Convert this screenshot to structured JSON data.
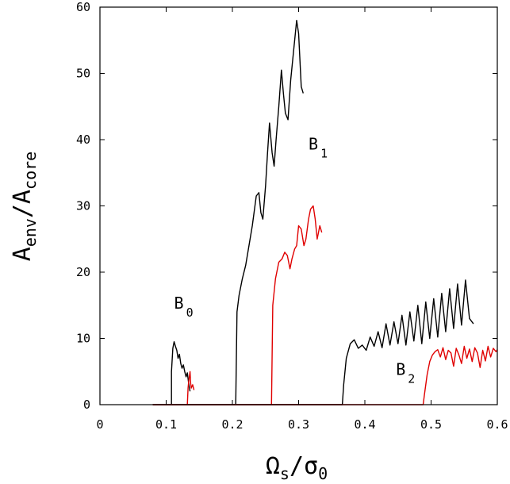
{
  "chart_data": {
    "type": "line",
    "title": "",
    "xlabel": {
      "main": "Ω",
      "sub": "s",
      "mid": "/σ",
      "sub2": "0"
    },
    "ylabel": {
      "main": "A",
      "sub": "env",
      "mid": "/A",
      "sub2": "core"
    },
    "xlim": [
      0,
      0.6
    ],
    "ylim": [
      0,
      60
    ],
    "xticks": [
      {
        "value": 0,
        "label": "0"
      },
      {
        "value": 0.1,
        "label": "0.1"
      },
      {
        "value": 0.2,
        "label": "0.2"
      },
      {
        "value": 0.3,
        "label": "0.3"
      },
      {
        "value": 0.4,
        "label": "0.4"
      },
      {
        "value": 0.5,
        "label": "0.5"
      },
      {
        "value": 0.6,
        "label": "0.6"
      }
    ],
    "yticks": [
      {
        "value": 0,
        "label": "0"
      },
      {
        "value": 10,
        "label": "10"
      },
      {
        "value": 20,
        "label": "20"
      },
      {
        "value": 30,
        "label": "30"
      },
      {
        "value": 40,
        "label": "40"
      },
      {
        "value": 50,
        "label": "50"
      },
      {
        "value": 60,
        "label": "60"
      }
    ],
    "colors": {
      "black": "#000000",
      "red": "#e00000"
    },
    "annotations": [
      {
        "id": "B0",
        "main": "B",
        "sub": "0",
        "x": 0.112,
        "y": 14.5
      },
      {
        "id": "B1",
        "main": "B",
        "sub": "1",
        "x": 0.315,
        "y": 38.5
      },
      {
        "id": "B2",
        "main": "B",
        "sub": "2",
        "x": 0.447,
        "y": 4.5
      }
    ],
    "series": [
      {
        "name": "black-branch-B0",
        "color": "#000000",
        "style": "solid",
        "x": [
          0.08,
          0.108,
          0.108,
          0.11,
          0.112,
          0.114,
          0.116,
          0.118,
          0.12,
          0.122,
          0.124,
          0.126,
          0.128,
          0.13,
          0.132,
          0.134,
          0.136
        ],
        "y": [
          0,
          0,
          5,
          8.5,
          9.5,
          8.8,
          8.2,
          7.0,
          7.6,
          6.2,
          5.5,
          6.0,
          5.0,
          4.2,
          4.8,
          3.2,
          2.0
        ]
      },
      {
        "name": "red-branch-B0",
        "color": "#e00000",
        "style": "solid",
        "x": [
          0.08,
          0.132,
          0.133,
          0.134,
          0.136,
          0.137,
          0.138,
          0.14,
          0.142
        ],
        "y": [
          0,
          0,
          2.5,
          3.5,
          5.0,
          3.2,
          2.5,
          3.0,
          2.2
        ]
      },
      {
        "name": "black-branch-B1",
        "color": "#000000",
        "style": "solid",
        "x": [
          0.08,
          0.205,
          0.207,
          0.21,
          0.215,
          0.22,
          0.225,
          0.23,
          0.236,
          0.24,
          0.243,
          0.246,
          0.25,
          0.253,
          0.256,
          0.26,
          0.263,
          0.266,
          0.27,
          0.274,
          0.277,
          0.28,
          0.284,
          0.288,
          0.291,
          0.294,
          0.297,
          0.3,
          0.304,
          0.307
        ],
        "y": [
          0,
          0,
          14,
          16.5,
          19,
          21,
          24,
          27,
          31.5,
          32,
          29,
          28,
          33,
          38,
          42.5,
          38,
          36,
          40,
          45,
          50.5,
          47,
          44,
          43,
          49,
          52,
          55,
          58,
          56,
          48,
          47
        ]
      },
      {
        "name": "red-branch-B1",
        "color": "#e00000",
        "style": "solid",
        "x": [
          0.08,
          0.259,
          0.261,
          0.265,
          0.27,
          0.275,
          0.279,
          0.283,
          0.287,
          0.29,
          0.294,
          0.297,
          0.3,
          0.304,
          0.308,
          0.311,
          0.315,
          0.318,
          0.322,
          0.325,
          0.328,
          0.332,
          0.335
        ],
        "y": [
          0,
          0,
          15,
          19,
          21.5,
          22,
          23,
          22.5,
          20.5,
          22,
          23.5,
          24,
          27,
          26.5,
          24,
          25,
          28,
          29.5,
          30,
          28,
          25,
          27,
          26
        ]
      },
      {
        "name": "black-branch-B2",
        "color": "#000000",
        "style": "solid",
        "x": [
          0.08,
          0.366,
          0.368,
          0.372,
          0.378,
          0.384,
          0.39,
          0.396,
          0.402,
          0.408,
          0.414,
          0.42,
          0.426,
          0.432,
          0.438,
          0.444,
          0.45,
          0.456,
          0.462,
          0.468,
          0.474,
          0.48,
          0.486,
          0.492,
          0.498,
          0.504,
          0.51,
          0.516,
          0.522,
          0.528,
          0.534,
          0.54,
          0.546,
          0.552,
          0.558,
          0.564
        ],
        "y": [
          0,
          0,
          3,
          7,
          9.2,
          9.8,
          8.5,
          9.0,
          8.2,
          10.2,
          8.8,
          11.0,
          8.6,
          12.2,
          9.0,
          12.5,
          9.2,
          13.5,
          9.0,
          14.0,
          9.6,
          15.0,
          9.2,
          15.5,
          10.0,
          16.0,
          10.2,
          16.8,
          11.0,
          17.5,
          11.5,
          18.2,
          12.0,
          18.8,
          13.0,
          12.2
        ]
      },
      {
        "name": "red-branch-B2",
        "color": "#e00000",
        "style": "solid",
        "x": [
          0.08,
          0.488,
          0.49,
          0.494,
          0.498,
          0.502,
          0.506,
          0.51,
          0.514,
          0.518,
          0.522,
          0.526,
          0.53,
          0.534,
          0.538,
          0.542,
          0.546,
          0.55,
          0.554,
          0.558,
          0.562,
          0.566,
          0.57,
          0.574,
          0.578,
          0.582,
          0.586,
          0.59,
          0.594,
          0.598,
          0.6
        ],
        "y": [
          0,
          0,
          1.5,
          4.5,
          6.5,
          7.5,
          8.0,
          8.3,
          7.2,
          8.6,
          6.8,
          8.2,
          7.8,
          5.8,
          8.5,
          7.5,
          6.2,
          8.8,
          7.0,
          8.4,
          6.5,
          8.6,
          7.8,
          5.6,
          8.2,
          6.6,
          8.8,
          7.2,
          8.5,
          8.0,
          8.3
        ]
      }
    ]
  }
}
